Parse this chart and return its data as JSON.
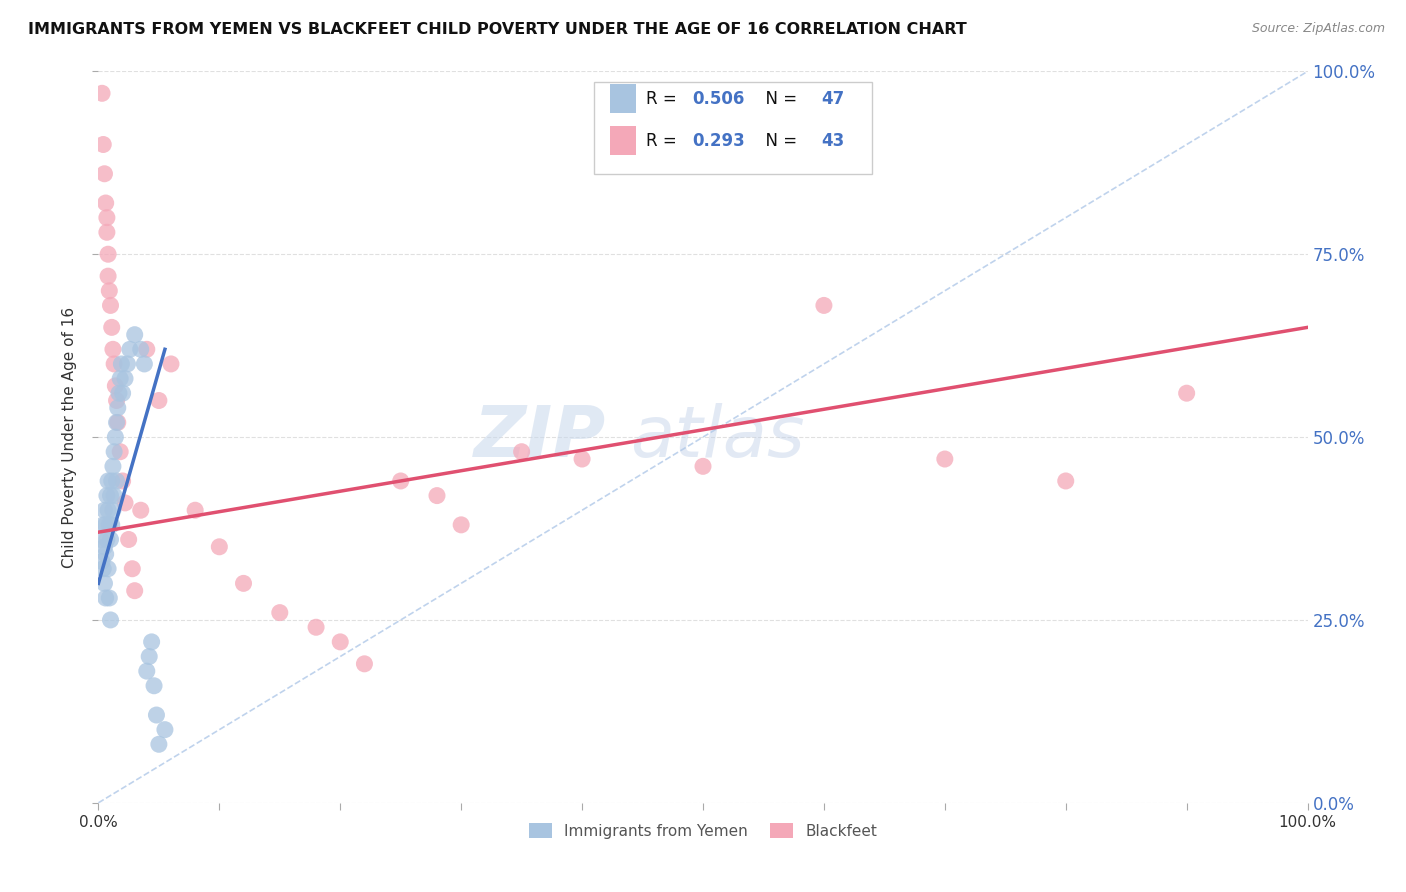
{
  "title": "IMMIGRANTS FROM YEMEN VS BLACKFEET CHILD POVERTY UNDER THE AGE OF 16 CORRELATION CHART",
  "source": "Source: ZipAtlas.com",
  "ylabel": "Child Poverty Under the Age of 16",
  "xlim": [
    0.0,
    1.0
  ],
  "ylim": [
    0.0,
    1.0
  ],
  "xtick_vals": [
    0.0,
    0.2,
    0.4,
    0.6,
    0.8,
    1.0
  ],
  "xtick_labels": [
    "0.0%",
    "",
    "",
    "",
    "",
    "100.0%"
  ],
  "ytick_vals": [
    0.0,
    0.25,
    0.5,
    0.75,
    1.0
  ],
  "ytick_labels_right": [
    "0.0%",
    "25.0%",
    "50.0%",
    "75.0%",
    "100.0%"
  ],
  "legend_label1": "Immigrants from Yemen",
  "legend_label2": "Blackfeet",
  "legend_r1": "0.506",
  "legend_n1": "47",
  "legend_r2": "0.293",
  "legend_n2": "43",
  "color_blue": "#a8c4e0",
  "color_pink": "#f4a8b8",
  "color_blue_text": "#4472c4",
  "color_pink_text": "#e05070",
  "color_line_blue": "#4472c4",
  "color_line_pink": "#e05070",
  "color_diag": "#b0c8e8",
  "background": "#ffffff",
  "grid_color": "#e0e0e0",
  "watermark_zip": "ZIP",
  "watermark_atlas": "atlas",
  "blue_scatter_x": [
    0.002,
    0.003,
    0.004,
    0.004,
    0.005,
    0.005,
    0.005,
    0.006,
    0.006,
    0.006,
    0.007,
    0.007,
    0.008,
    0.008,
    0.008,
    0.009,
    0.009,
    0.01,
    0.01,
    0.01,
    0.011,
    0.011,
    0.012,
    0.012,
    0.013,
    0.013,
    0.014,
    0.015,
    0.015,
    0.016,
    0.017,
    0.018,
    0.019,
    0.02,
    0.022,
    0.024,
    0.026,
    0.03,
    0.035,
    0.038,
    0.04,
    0.042,
    0.044,
    0.046,
    0.048,
    0.05,
    0.055
  ],
  "blue_scatter_y": [
    0.36,
    0.33,
    0.38,
    0.32,
    0.4,
    0.35,
    0.3,
    0.38,
    0.34,
    0.28,
    0.42,
    0.36,
    0.4,
    0.44,
    0.32,
    0.38,
    0.28,
    0.42,
    0.36,
    0.25,
    0.44,
    0.38,
    0.46,
    0.4,
    0.48,
    0.42,
    0.5,
    0.52,
    0.44,
    0.54,
    0.56,
    0.58,
    0.6,
    0.56,
    0.58,
    0.6,
    0.62,
    0.64,
    0.62,
    0.6,
    0.18,
    0.2,
    0.22,
    0.16,
    0.12,
    0.08,
    0.1
  ],
  "pink_scatter_x": [
    0.003,
    0.004,
    0.005,
    0.006,
    0.007,
    0.007,
    0.008,
    0.008,
    0.009,
    0.01,
    0.011,
    0.012,
    0.013,
    0.014,
    0.015,
    0.016,
    0.018,
    0.02,
    0.022,
    0.025,
    0.028,
    0.03,
    0.035,
    0.04,
    0.05,
    0.06,
    0.08,
    0.1,
    0.12,
    0.15,
    0.18,
    0.2,
    0.22,
    0.25,
    0.28,
    0.3,
    0.35,
    0.4,
    0.5,
    0.6,
    0.7,
    0.8,
    0.9
  ],
  "pink_scatter_y": [
    0.97,
    0.9,
    0.86,
    0.82,
    0.8,
    0.78,
    0.75,
    0.72,
    0.7,
    0.68,
    0.65,
    0.62,
    0.6,
    0.57,
    0.55,
    0.52,
    0.48,
    0.44,
    0.41,
    0.36,
    0.32,
    0.29,
    0.4,
    0.62,
    0.55,
    0.6,
    0.4,
    0.35,
    0.3,
    0.26,
    0.24,
    0.22,
    0.19,
    0.44,
    0.42,
    0.38,
    0.48,
    0.47,
    0.46,
    0.68,
    0.47,
    0.44,
    0.56
  ],
  "blue_trend_x": [
    0.0,
    0.055
  ],
  "blue_trend_y": [
    0.3,
    0.62
  ],
  "pink_trend_x": [
    0.0,
    1.0
  ],
  "pink_trend_y": [
    0.37,
    0.65
  ]
}
